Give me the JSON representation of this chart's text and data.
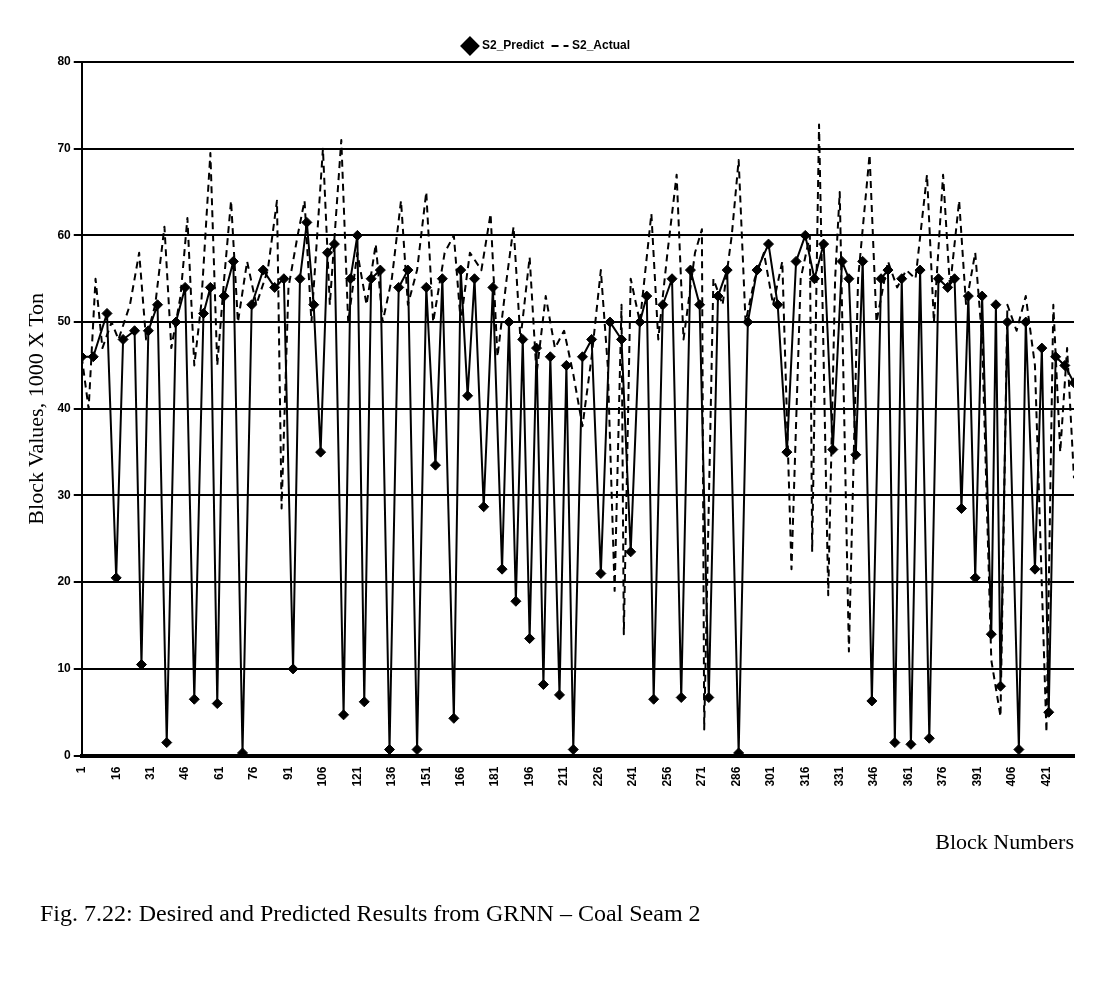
{
  "chart_data": {
    "type": "line",
    "xlabel": "Block Numbers",
    "ylabel": "Block Values, 1000 X Ton",
    "annotations": [
      "Fig. 7.22: Desired and Predicted Results from GRNN – Coal Seam 2"
    ],
    "xlim": [
      1,
      433
    ],
    "xticks": [
      1,
      16,
      31,
      46,
      61,
      76,
      91,
      106,
      121,
      136,
      151,
      166,
      181,
      196,
      211,
      226,
      241,
      256,
      271,
      286,
      301,
      316,
      331,
      346,
      361,
      376,
      391,
      406,
      421
    ],
    "ylim": [
      0,
      80
    ],
    "yticks": [
      0,
      10,
      20,
      30,
      40,
      50,
      60,
      70,
      80
    ],
    "grid": "y",
    "legend": "top",
    "series": [
      {
        "name": "S2_Predict",
        "color": "#000000",
        "marker": "diamond",
        "line_style": "solid",
        "x": [
          1,
          6,
          12,
          16,
          19,
          24,
          27,
          30,
          34,
          38,
          42,
          46,
          50,
          54,
          57,
          60,
          63,
          67,
          71,
          75,
          80,
          85,
          89,
          93,
          96,
          99,
          102,
          105,
          108,
          111,
          115,
          118,
          121,
          124,
          127,
          131,
          135,
          139,
          143,
          147,
          151,
          155,
          158,
          163,
          166,
          169,
          172,
          176,
          180,
          184,
          187,
          190,
          193,
          196,
          199,
          202,
          205,
          209,
          212,
          215,
          219,
          223,
          227,
          231,
          236,
          240,
          244,
          247,
          250,
          254,
          258,
          262,
          266,
          270,
          274,
          278,
          282,
          287,
          291,
          295,
          300,
          304,
          308,
          312,
          316,
          320,
          324,
          328,
          332,
          335,
          338,
          341,
          345,
          349,
          352,
          355,
          358,
          362,
          366,
          370,
          374,
          378,
          381,
          384,
          387,
          390,
          393,
          397,
          399,
          401,
          404,
          409,
          412,
          416,
          419,
          422,
          425,
          429,
          433
        ],
        "values": [
          46,
          46,
          51,
          20.5,
          48,
          49,
          10.5,
          49,
          52,
          1.5,
          50,
          54,
          6.5,
          51,
          54,
          6,
          53,
          57,
          0.3,
          52,
          56,
          54,
          55,
          10,
          55,
          61.5,
          52,
          35,
          58,
          59,
          4.7,
          55,
          60,
          6.2,
          55,
          56,
          0.7,
          54,
          56,
          0.7,
          54,
          33.5,
          55,
          4.3,
          56,
          41.5,
          55,
          28.7,
          54,
          21.5,
          50,
          17.8,
          48,
          13.5,
          47,
          8.2,
          46,
          7,
          45,
          0.7,
          46,
          48,
          21,
          50,
          48,
          23.5,
          50,
          53,
          6.5,
          52,
          55,
          6.7,
          56,
          52,
          6.7,
          53,
          56,
          0.3,
          50,
          56,
          59,
          52,
          35,
          57,
          60,
          55,
          59,
          35.3,
          57,
          55,
          34.7,
          57,
          6.3,
          55,
          56,
          1.5,
          55,
          1.3,
          56,
          2,
          55,
          54,
          55,
          28.5,
          53,
          20.5,
          53,
          14,
          52,
          8,
          50,
          0.7,
          50,
          21.5,
          47,
          5,
          46,
          45,
          43
        ]
      },
      {
        "name": "S2_Actual",
        "color": "#000000",
        "marker": "none",
        "line_style": "dashed",
        "x": [
          1,
          4,
          7,
          10,
          14,
          17,
          22,
          26,
          29,
          33,
          37,
          40,
          44,
          47,
          50,
          53,
          57,
          60,
          63,
          66,
          69,
          73,
          77,
          82,
          86,
          88,
          91,
          95,
          98,
          101,
          106,
          109,
          114,
          117,
          121,
          125,
          129,
          132,
          136,
          140,
          143,
          147,
          151,
          154,
          159,
          163,
          166,
          170,
          175,
          179,
          182,
          186,
          189,
          192,
          196,
          199,
          203,
          207,
          211,
          215,
          219,
          223,
          227,
          230,
          233,
          236,
          237,
          240,
          244,
          249,
          252,
          256,
          260,
          263,
          268,
          271,
          272,
          276,
          280,
          284,
          287,
          290,
          294,
          298,
          302,
          306,
          310,
          314,
          318,
          319,
          322,
          326,
          329,
          331,
          335,
          339,
          344,
          347,
          352,
          356,
          360,
          364,
          369,
          372,
          376,
          379,
          383,
          386,
          390,
          393,
          397,
          401,
          404,
          408,
          412,
          416,
          421,
          424,
          427,
          430,
          433
        ],
        "values": [
          46,
          40,
          55,
          47,
          50,
          48,
          52,
          58,
          48,
          52,
          61,
          47,
          53,
          62,
          45,
          52,
          69.5,
          45,
          55,
          64,
          50,
          57,
          52,
          56,
          64,
          28.5,
          54,
          60,
          64,
          50,
          70,
          52,
          71,
          50,
          58,
          52,
          59,
          50,
          55,
          64,
          52,
          56,
          65,
          50,
          58,
          60,
          50,
          58,
          56,
          62.5,
          46,
          55,
          61,
          48,
          57.5,
          44,
          53,
          47,
          49,
          44,
          38,
          46,
          56,
          45,
          19,
          52,
          14,
          55,
          50,
          62.5,
          48,
          58,
          67,
          48,
          58,
          60.7,
          3,
          55,
          52,
          60,
          68.7,
          50,
          55,
          58,
          52,
          57,
          21.5,
          55,
          60,
          23.5,
          72.8,
          18.5,
          55,
          65,
          12,
          55,
          69.3,
          50,
          57,
          54,
          56,
          55,
          67,
          50,
          67,
          54,
          64,
          52,
          58,
          48,
          11,
          4.5,
          52,
          49,
          53,
          45,
          2.7,
          52,
          35,
          47,
          32
        ]
      }
    ]
  }
}
